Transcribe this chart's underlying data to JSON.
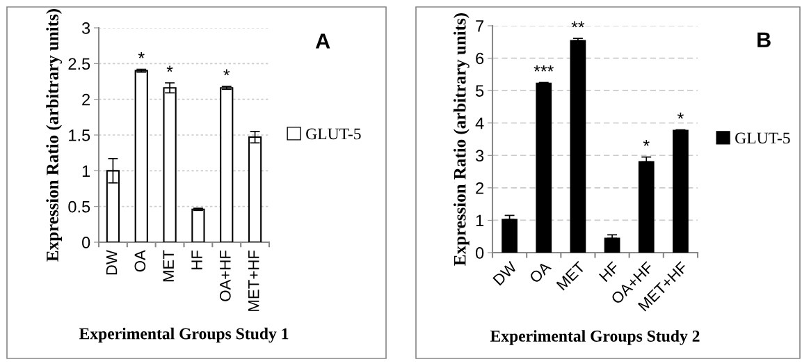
{
  "chart_data": [
    {
      "type": "bar",
      "categories": [
        "DW",
        "OA",
        "MET",
        "HF",
        "OA+HF",
        "MET+HF"
      ],
      "xlabel": "Experimental Groups Study 1",
      "ylabel": "Expression Ratio (arbitrary units)",
      "ylim": [
        0,
        3
      ],
      "yticks": [
        0,
        0.5,
        1,
        1.5,
        2,
        2.5,
        3
      ],
      "grid": "y",
      "legend": "right",
      "series": [
        {
          "name": "GLUT-5",
          "color": "#ffffff",
          "values": [
            1.0,
            2.4,
            2.16,
            0.46,
            2.16,
            1.47
          ],
          "errors": [
            0.17,
            0.02,
            0.07,
            0.015,
            0.02,
            0.08
          ]
        }
      ],
      "annotations": [
        "A",
        {
          "text": "*",
          "x": "OA",
          "y": 2.42
        },
        {
          "text": "*",
          "x": "MET",
          "y": 2.23
        },
        {
          "text": "*",
          "x": "OA+HF",
          "y": 2.18
        }
      ]
    },
    {
      "type": "bar",
      "categories": [
        "DW",
        "OA",
        "MET",
        "HF",
        "OA+HF",
        "MET+HF"
      ],
      "xlabel": "Experimental Groups Study 2",
      "ylabel": "Expression Ratio (arbitrary units)",
      "ylim": [
        0,
        7
      ],
      "yticks": [
        0,
        1,
        2,
        3,
        4,
        5,
        6,
        7
      ],
      "grid": "y",
      "legend": "right",
      "series": [
        {
          "name": "GLUT-5",
          "color": "#000000",
          "values": [
            1.02,
            5.22,
            6.54,
            0.44,
            2.8,
            3.77
          ],
          "errors": [
            [
              1.02,
              1.15
            ],
            [
              5.22,
              5.25
            ],
            [
              6.54,
              6.61
            ],
            [
              0.44,
              0.55
            ],
            [
              2.8,
              2.95
            ],
            [
              3.77,
              3.79
            ]
          ]
        }
      ],
      "annotations": [
        "B",
        {
          "text": "***",
          "x": "OA",
          "y": 5.25
        },
        {
          "text": "**",
          "x": "MET",
          "y": 6.61
        },
        {
          "text": "*",
          "x": "OA+HF",
          "y": 2.95
        },
        {
          "text": "*",
          "x": "MET+HF",
          "y": 3.79
        }
      ]
    }
  ]
}
